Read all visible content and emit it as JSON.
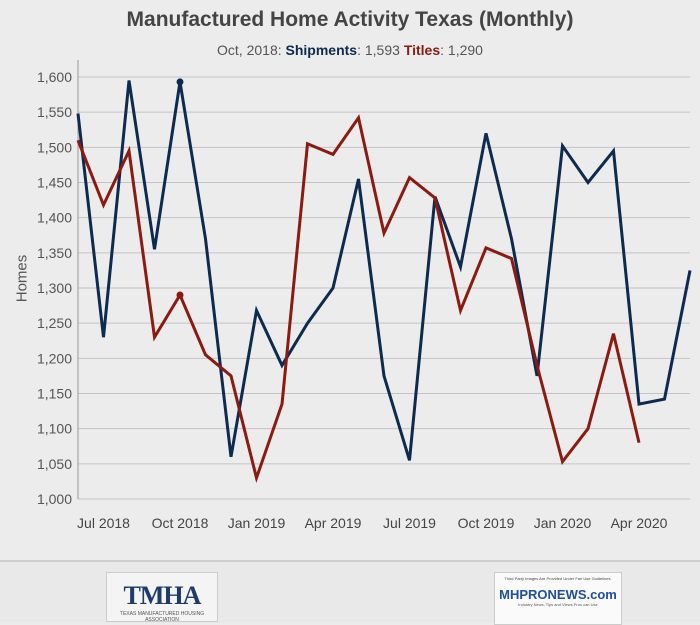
{
  "chart_data": {
    "type": "line",
    "title": "Manufactured Home Activity Texas (Monthly)",
    "ylabel": "Homes",
    "xlabel": "",
    "ylim": [
      1000,
      1640
    ],
    "yticks": [
      1000,
      1050,
      1100,
      1150,
      1200,
      1250,
      1300,
      1350,
      1400,
      1450,
      1500,
      1550,
      1600
    ],
    "ytick_labels": [
      "1,000",
      "1,050",
      "1,100",
      "1,150",
      "1,200",
      "1,250",
      "1,300",
      "1,350",
      "1,400",
      "1,450",
      "1,500",
      "1,550",
      "1,600"
    ],
    "x": [
      "Jun 2018",
      "Jul 2018",
      "Aug 2018",
      "Sep 2018",
      "Oct 2018",
      "Nov 2018",
      "Dec 2018",
      "Jan 2019",
      "Feb 2019",
      "Mar 2019",
      "Apr 2019",
      "May 2019",
      "Jun 2019",
      "Jul 2019",
      "Aug 2019",
      "Sep 2019",
      "Oct 2019",
      "Nov 2019",
      "Dec 2019",
      "Jan 2020",
      "Feb 2020",
      "Mar 2020",
      "Apr 2020",
      "May 2020",
      "Jun 2020"
    ],
    "xtick_labels": [
      {
        "i": 1,
        "label": "Jul 2018"
      },
      {
        "i": 4,
        "label": "Oct 2018"
      },
      {
        "i": 7,
        "label": "Jan 2019"
      },
      {
        "i": 10,
        "label": "Apr 2019"
      },
      {
        "i": 13,
        "label": "Jul 2019"
      },
      {
        "i": 16,
        "label": "Oct 2019"
      },
      {
        "i": 19,
        "label": "Jan 2020"
      },
      {
        "i": 22,
        "label": "Apr 2020"
      }
    ],
    "grid": true,
    "legend": "none",
    "series": [
      {
        "name": "Shipments",
        "color": "#0d2a4f",
        "values": [
          1548,
          1230,
          1595,
          1355,
          1593,
          1370,
          1060,
          1268,
          1190,
          1250,
          1300,
          1455,
          1175,
          1055,
          1430,
          1330,
          1520,
          1370,
          1175,
          1502,
          1450,
          1495,
          1135,
          1142,
          1325
        ]
      },
      {
        "name": "Titles",
        "color": "#8b1a10",
        "values": [
          1510,
          1418,
          1495,
          1230,
          1290,
          1205,
          1175,
          1030,
          1135,
          1505,
          1490,
          1542,
          1378,
          1457,
          1428,
          1268,
          1357,
          1342,
          1190,
          1053,
          1100,
          1235,
          1080,
          null,
          null
        ]
      }
    ],
    "highlight_index": 4
  },
  "tooltip": {
    "date": "Oct, 2018",
    "shipments_label": "Shipments",
    "shipments_value": "1,593",
    "titles_label": "Titles",
    "titles_value": "1,290"
  },
  "footer": {
    "tmha_logo": "TMHA",
    "tmha_sub": "TEXAS MANUFACTURED HOUSING ASSOCIATION",
    "mhp_note": "Third Party Images Are Provided Under Fair Use Guidelines.",
    "mhp_logo": "MHPRONEWS.com",
    "mhp_tag": "Industry News, Tips and Views Pros can Use"
  }
}
